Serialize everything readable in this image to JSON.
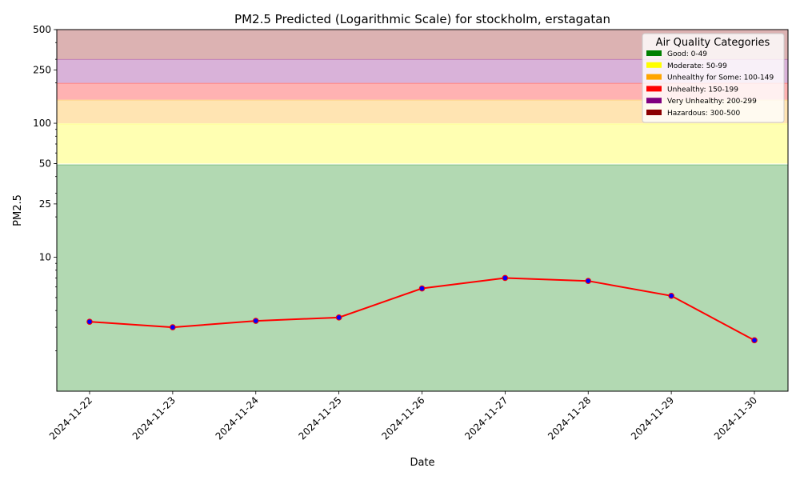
{
  "chart_data": {
    "type": "line",
    "title": "PM2.5 Predicted (Logarithmic Scale) for stockholm, erstagatan",
    "xlabel": "Date",
    "ylabel": "PM2.5",
    "yscale": "log",
    "ylim": [
      1,
      500
    ],
    "yticks": [
      10,
      25,
      50,
      100,
      250,
      500
    ],
    "grid": false,
    "legend_position": "top-right",
    "x": [
      "2024-11-22",
      "2024-11-23",
      "2024-11-24",
      "2024-11-25",
      "2024-11-26",
      "2024-11-27",
      "2024-11-28",
      "2024-11-29",
      "2024-11-30"
    ],
    "series": [
      {
        "values": [
          3.3,
          3.0,
          3.35,
          3.55,
          5.85,
          7.0,
          6.65,
          5.15,
          2.4
        ],
        "color": "#ff0000",
        "marker_color": "#0000ff"
      }
    ],
    "bands": [
      {
        "label": "Good: 0-49",
        "from": 0,
        "to": 49,
        "color": "#008000"
      },
      {
        "label": "Moderate: 50-99",
        "from": 50,
        "to": 99,
        "color": "#ffff00"
      },
      {
        "label": "Unhealthy for Some: 100-149",
        "from": 100,
        "to": 149,
        "color": "#ffa500"
      },
      {
        "label": "Unhealthy: 150-199",
        "from": 150,
        "to": 199,
        "color": "#ff0000"
      },
      {
        "label": "Very Unhealthy: 200-299",
        "from": 200,
        "to": 299,
        "color": "#800080"
      },
      {
        "label": "Hazardous: 300-500",
        "from": 300,
        "to": 500,
        "color": "#8b0000"
      }
    ],
    "legend_title": "Air Quality Categories"
  }
}
